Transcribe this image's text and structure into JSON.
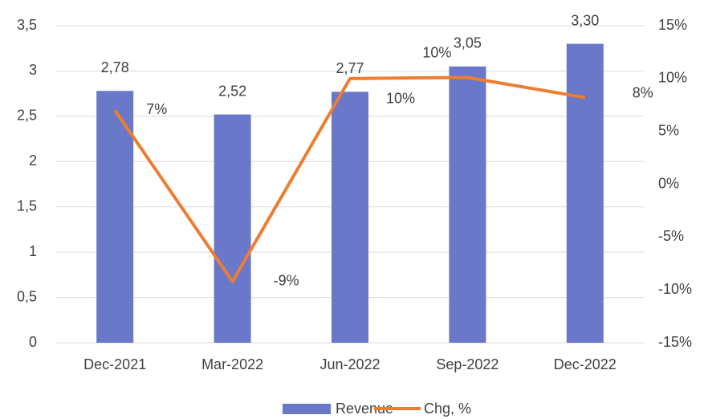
{
  "chart_data": {
    "type": "bar",
    "categories": [
      "Dec-2021",
      "Mar-2022",
      "Jun-2022",
      "Sep-2022",
      "Dec-2022"
    ],
    "series": [
      {
        "name": "Revenue",
        "type": "bar",
        "color": "#6a78c9",
        "values": [
          2.78,
          2.52,
          2.77,
          3.05,
          3.3
        ],
        "value_labels": [
          "2,78",
          "2,52",
          "2,77",
          "3,05",
          "3,30"
        ]
      },
      {
        "name": "Chg, %",
        "type": "line",
        "axis": "y2",
        "color": "#ed7d31",
        "values": [
          7.0,
          -9.2,
          10.0,
          10.1,
          8.2
        ],
        "value_labels": [
          "7%",
          "-9%",
          "10%",
          "10%",
          "8%"
        ]
      }
    ],
    "ylim": [
      0,
      3.5
    ],
    "yticks": [
      0,
      {
        "value": 0.5,
        "label": "0,5"
      },
      1,
      {
        "value": 1.5,
        "label": "1,5"
      },
      2,
      {
        "value": 2.5,
        "label": "2,5"
      },
      3,
      {
        "value": 3.5,
        "label": "3,5"
      }
    ],
    "y2lim": [
      -15,
      15
    ],
    "y2ticks": [
      {
        "value": -15,
        "label": "-15%"
      },
      {
        "value": -10,
        "label": "-10%"
      },
      {
        "value": -5,
        "label": "-5%"
      },
      {
        "value": 0,
        "label": "0%"
      },
      {
        "value": 5,
        "label": "5%"
      },
      {
        "value": 10,
        "label": "10%"
      },
      {
        "value": 15,
        "label": "15%"
      }
    ],
    "grid": true,
    "legend": "bottom"
  }
}
